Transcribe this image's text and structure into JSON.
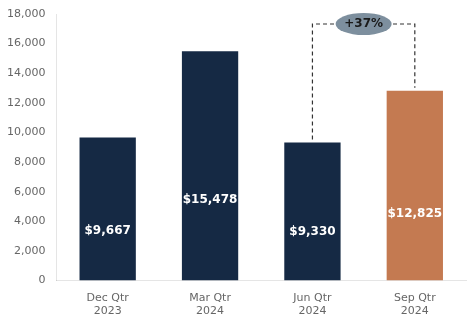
{
  "chart_data": {
    "type": "bar",
    "categories": [
      "Dec Qtr\n2023",
      "Mar Qtr\n2024",
      "Jun Qtr\n2024",
      "Sep Qtr\n2024"
    ],
    "values": [
      9667,
      15478,
      9330,
      12825
    ],
    "value_labels": [
      "$9,667",
      "$15,478",
      "$9,330",
      "$12,825"
    ],
    "data_labels": true,
    "colors": [
      "#152944",
      "#152944",
      "#152944",
      "#c47a51"
    ],
    "ylim": [
      0,
      18000
    ],
    "yticks": [
      0,
      {
        "value": 2000,
        "label": "2,000"
      },
      {
        "value": 4000,
        "label": "4,000"
      },
      {
        "value": 6000,
        "label": "6,000"
      },
      {
        "value": 8000,
        "label": "8,000"
      },
      {
        "value": 10000,
        "label": "10,000"
      },
      {
        "value": 12000,
        "label": "12,000"
      },
      {
        "value": 14000,
        "label": "14,000"
      },
      {
        "value": 16000,
        "label": "16,000"
      },
      {
        "value": 18000,
        "label": "18,000"
      }
    ],
    "annotation": "+37%",
    "grid": false
  }
}
